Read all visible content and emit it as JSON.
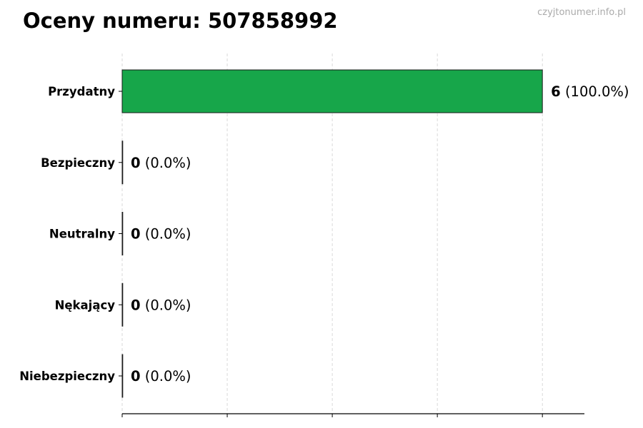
{
  "title": "Oceny numeru: 507858992",
  "watermark": "czyjtonumer.info.pl",
  "chart_data": {
    "type": "bar",
    "orientation": "horizontal",
    "title": "Oceny numeru: 507858992",
    "categories": [
      "Przydatny",
      "Bezpieczny",
      "Neutralny",
      "Nękający",
      "Niebezpieczny"
    ],
    "values": [
      6,
      0,
      0,
      0,
      0
    ],
    "value_labels": [
      "6",
      "0",
      "0",
      "0",
      "0"
    ],
    "percent_labels": [
      "(100.0%)",
      "(0.0%)",
      "(0.0%)",
      "(0.0%)",
      "(0.0%)"
    ],
    "colors": [
      "#17a64a",
      "#17a64a",
      "#17a64a",
      "#17a64a",
      "#17a64a"
    ],
    "xlim": [
      0,
      6.6
    ],
    "xticks": [
      0,
      1.5,
      3,
      4.5,
      6
    ],
    "xtick_labels_shown": false,
    "grid": "vertical dashed",
    "legend": "none",
    "xlabel": "",
    "ylabel": ""
  }
}
